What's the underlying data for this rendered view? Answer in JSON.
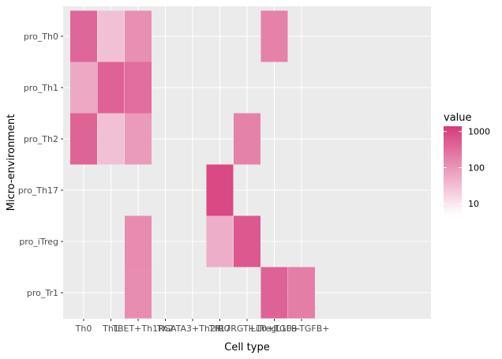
{
  "chart_data": {
    "type": "heatmap",
    "title": "",
    "xlabel": "Cell type",
    "ylabel": "Micro-environment",
    "x_categories": [
      "Th0",
      "Th1",
      "TBET+Th1R",
      "Th2",
      "GATA3+Th2R",
      "Th17",
      "RORGT+iTreg",
      "IL10+TGFB-",
      "IL10+TGFB+"
    ],
    "x_tick_labels": [
      "Th0",
      "Th1",
      "TBET+Th1R",
      "Th2",
      "GATA3+Th2R",
      "Th17",
      "RORGT+iTreg",
      "IL10+TGFB-",
      "IL10+TGFB+"
    ],
    "y_categories": [
      "pro_Th0",
      "pro_Th1",
      "pro_Th2",
      "pro_Th17",
      "pro_iTreg",
      "pro_Tr1"
    ],
    "scale": "log10",
    "legend": {
      "title": "value",
      "breaks": [
        10,
        100,
        1000
      ],
      "break_labels": [
        "10",
        "100",
        "1000"
      ],
      "limits": [
        5,
        1400
      ],
      "low_color": "#ffffff",
      "high_color": "#d63a7a",
      "position": "right"
    },
    "grid": true,
    "cells": [
      {
        "row": "pro_Th0",
        "col": "Th0",
        "value": 400
      },
      {
        "row": "pro_Th0",
        "col": "Th1",
        "value": 30
      },
      {
        "row": "pro_Th0",
        "col": "TBET+Th1R",
        "value": 120
      },
      {
        "row": "pro_Th0",
        "col": "IL10+TGFB-",
        "value": 180
      },
      {
        "row": "pro_Th1",
        "col": "Th0",
        "value": 60
      },
      {
        "row": "pro_Th1",
        "col": "Th1",
        "value": 450
      },
      {
        "row": "pro_Th1",
        "col": "TBET+Th1R",
        "value": 320
      },
      {
        "row": "pro_Th2",
        "col": "Th0",
        "value": 420
      },
      {
        "row": "pro_Th2",
        "col": "Th1",
        "value": 30
      },
      {
        "row": "pro_Th2",
        "col": "TBET+Th1R",
        "value": 90
      },
      {
        "row": "pro_Th2",
        "col": "RORGT+iTreg",
        "value": 180
      },
      {
        "row": "pro_Th17",
        "col": "Th17",
        "value": 900
      },
      {
        "row": "pro_iTreg",
        "col": "TBET+Th1R",
        "value": 140
      },
      {
        "row": "pro_iTreg",
        "col": "Th17",
        "value": 50
      },
      {
        "row": "pro_iTreg",
        "col": "RORGT+iTreg",
        "value": 600
      },
      {
        "row": "pro_Tr1",
        "col": "TBET+Th1R",
        "value": 130
      },
      {
        "row": "pro_Tr1",
        "col": "IL10+TGFB-",
        "value": 450
      },
      {
        "row": "pro_Tr1",
        "col": "IL10+TGFB+",
        "value": 200
      }
    ]
  }
}
